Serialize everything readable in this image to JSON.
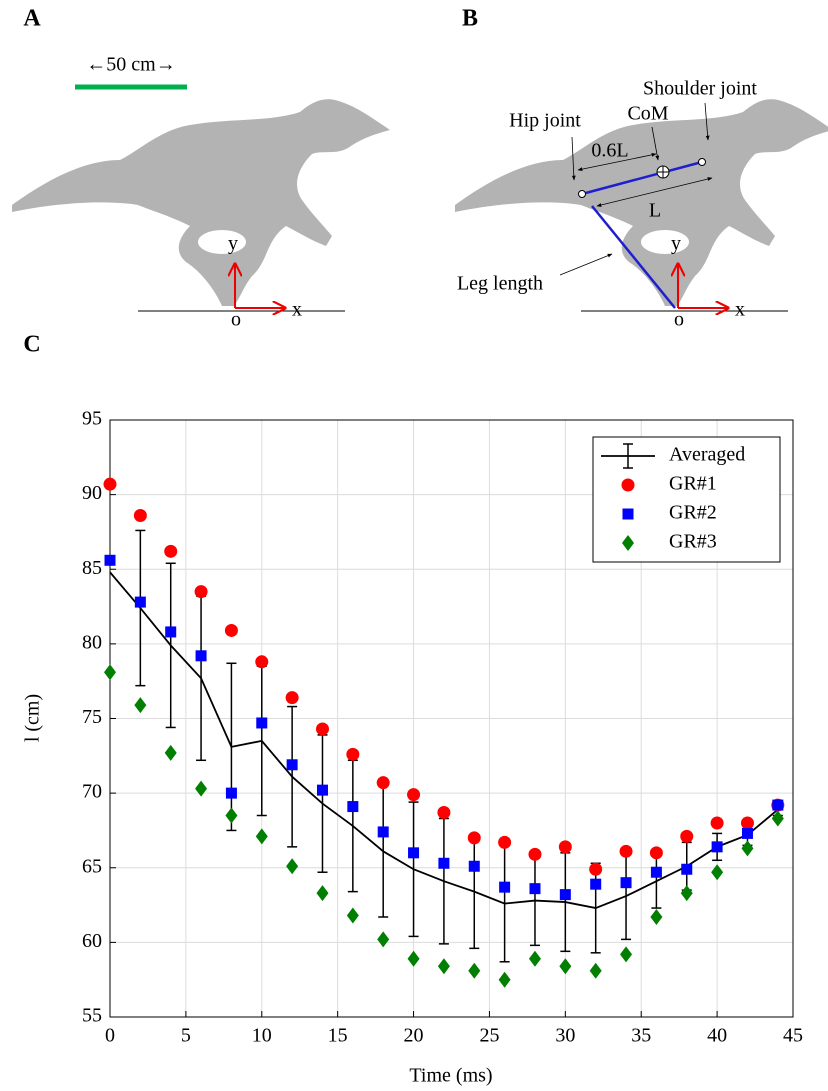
{
  "panels": {
    "A": {
      "label": "A",
      "scale": "←50 cm→",
      "axis_y": "y",
      "axis_x": "x",
      "origin": "o"
    },
    "B": {
      "label": "B",
      "shoulder": "Shoulder joint",
      "com": "CoM",
      "hip": "Hip joint",
      "partial_length": "0.6L",
      "length": "L",
      "leg": "Leg length",
      "axis_y": "y",
      "axis_x": "x",
      "origin": "o"
    },
    "C": {
      "label": "C"
    }
  },
  "chart_data": {
    "type": "scatter",
    "xlabel": "Time (ms)",
    "ylabel": "l (cm)",
    "x": [
      0,
      2,
      4,
      6,
      8,
      10,
      12,
      14,
      16,
      18,
      20,
      22,
      24,
      26,
      28,
      30,
      32,
      34,
      36,
      38,
      40,
      42,
      44
    ],
    "series": [
      {
        "name": "Averaged",
        "color": "#000000",
        "marker": "errorline",
        "values": [
          84.8,
          82.4,
          79.9,
          77.7,
          73.1,
          73.5,
          71.1,
          69.3,
          67.8,
          66.1,
          64.9,
          64.1,
          63.4,
          62.6,
          62.8,
          62.7,
          62.3,
          63.1,
          64.1,
          65.1,
          66.4,
          67.2,
          68.9
        ],
        "errors": [
          null,
          5.2,
          5.5,
          5.5,
          5.6,
          5.0,
          4.7,
          4.6,
          4.4,
          4.4,
          4.5,
          4.2,
          3.8,
          3.9,
          3.0,
          3.3,
          3.0,
          2.9,
          1.8,
          1.6,
          0.9,
          0.7,
          0.4
        ]
      },
      {
        "name": "GR#1",
        "color": "#ff0000",
        "marker": "circle",
        "values": [
          90.7,
          88.6,
          86.2,
          83.5,
          80.9,
          78.8,
          76.4,
          74.3,
          72.6,
          70.7,
          69.9,
          68.7,
          67.0,
          66.7,
          65.9,
          66.4,
          64.9,
          66.1,
          66.0,
          67.1,
          68.0,
          68.0,
          69.2
        ]
      },
      {
        "name": "GR#2",
        "color": "#0000ff",
        "marker": "square",
        "values": [
          85.6,
          82.8,
          80.8,
          79.2,
          70.0,
          74.7,
          71.9,
          70.2,
          69.1,
          67.4,
          66.0,
          65.3,
          65.1,
          63.7,
          63.6,
          63.2,
          63.9,
          64.0,
          64.7,
          64.9,
          66.4,
          67.3,
          69.2
        ]
      },
      {
        "name": "GR#3",
        "color": "#007f00",
        "marker": "diamond",
        "values": [
          78.1,
          75.9,
          72.7,
          70.3,
          68.5,
          67.1,
          65.1,
          63.3,
          61.8,
          60.2,
          58.9,
          58.4,
          58.1,
          57.5,
          58.9,
          58.4,
          58.1,
          59.2,
          61.7,
          63.3,
          64.7,
          66.3,
          68.3
        ]
      }
    ],
    "xlim": [
      0,
      45
    ],
    "xticks": [
      0,
      5,
      10,
      15,
      20,
      25,
      30,
      35,
      40,
      45
    ],
    "ylim": [
      55,
      95
    ],
    "yticks": [
      55,
      60,
      65,
      70,
      75,
      80,
      85,
      90,
      95
    ],
    "grid": true,
    "legend": "upper right"
  }
}
